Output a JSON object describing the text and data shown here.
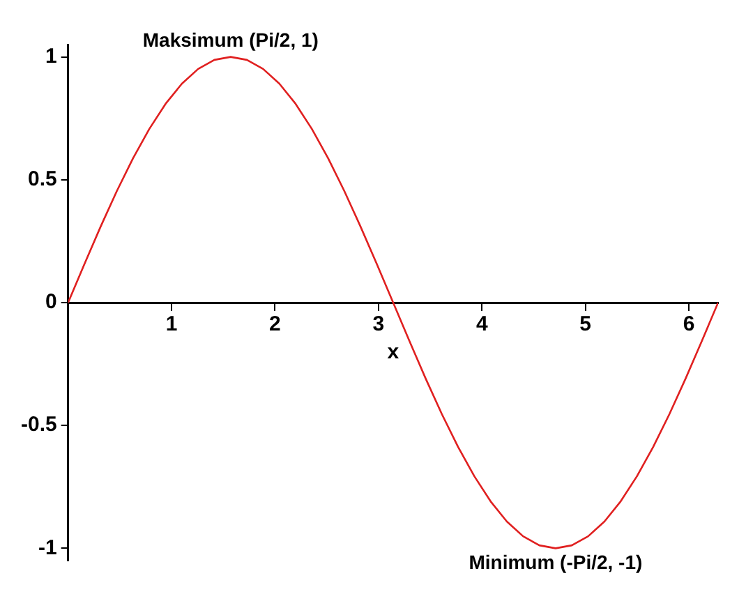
{
  "chart_data": {
    "type": "line",
    "xlabel": "x",
    "x": [
      0,
      0.157,
      0.314,
      0.471,
      0.628,
      0.785,
      0.942,
      1.1,
      1.257,
      1.414,
      1.571,
      1.728,
      1.885,
      2.042,
      2.199,
      2.356,
      2.513,
      2.67,
      2.827,
      2.985,
      3.142,
      3.299,
      3.456,
      3.613,
      3.77,
      3.927,
      4.084,
      4.241,
      4.398,
      4.555,
      4.712,
      4.869,
      5.027,
      5.184,
      5.341,
      5.498,
      5.655,
      5.812,
      5.969,
      6.126,
      6.283
    ],
    "series": [
      {
        "color": "#e02020",
        "values": [
          0,
          0.156,
          0.309,
          0.454,
          0.588,
          0.707,
          0.809,
          0.891,
          0.951,
          0.988,
          1,
          0.988,
          0.951,
          0.891,
          0.809,
          0.707,
          0.588,
          0.454,
          0.309,
          0.156,
          0,
          -0.156,
          -0.309,
          -0.454,
          -0.588,
          -0.707,
          -0.809,
          -0.891,
          -0.951,
          -0.988,
          -1,
          -0.988,
          -0.951,
          -0.891,
          -0.809,
          -0.707,
          -0.588,
          -0.454,
          -0.309,
          -0.156,
          0
        ]
      }
    ],
    "xlim": [
      0,
      6.283
    ],
    "ylim": [
      -1.05,
      1.05
    ],
    "xticks": [
      1,
      2,
      3,
      4,
      5,
      6
    ],
    "yticks": [
      -1,
      -0.5,
      0,
      0.5,
      1
    ],
    "grid": false,
    "legend": false,
    "marker": "none",
    "line_style": "solid",
    "annotations": [
      {
        "text": "Maksimum (Pi/2, 1)",
        "x": 1.571,
        "y": 1
      },
      {
        "text": "Minimum (-Pi/2, -1)",
        "x": 4.712,
        "y": -1
      }
    ]
  }
}
